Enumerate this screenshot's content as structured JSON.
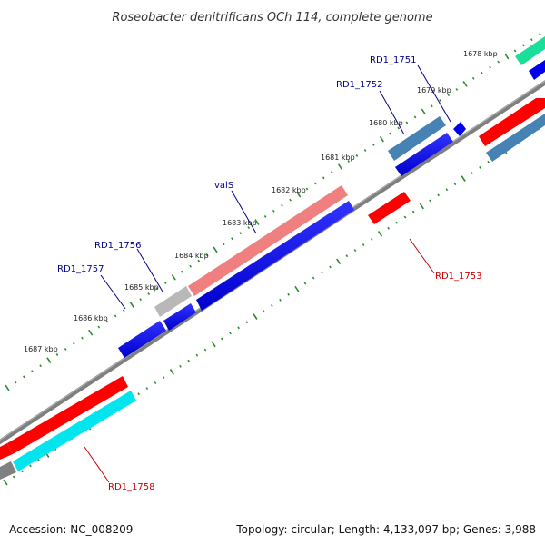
{
  "title": "Roseobacter denitrificans OCh 114, complete genome",
  "footer": {
    "accession": "Accession: NC_008209",
    "summary": "Topology: circular; Length: 4,133,097 bp; Genes: 3,988"
  },
  "colors": {
    "backbone": "#808080",
    "tick": "#2e8b2e",
    "forward_label": "#00008b",
    "reverse_label": "#cc0000"
  },
  "ticks": [
    {
      "label": "1678 kbp",
      "kbp": 1678
    },
    {
      "label": "1679 kbp",
      "kbp": 1679
    },
    {
      "label": "1680 kbp",
      "kbp": 1680
    },
    {
      "label": "1681 kbp",
      "kbp": 1681
    },
    {
      "label": "1682 kbp",
      "kbp": 1682
    },
    {
      "label": "1683 kbp",
      "kbp": 1683
    },
    {
      "label": "1684 kbp",
      "kbp": 1684
    },
    {
      "label": "1685 kbp",
      "kbp": 1685
    },
    {
      "label": "1686 kbp",
      "kbp": 1686
    },
    {
      "label": "1687 kbp",
      "kbp": 1687
    }
  ],
  "gene_labels": [
    {
      "id": "RD1_1751",
      "text": "RD1_1751",
      "strand": "forward"
    },
    {
      "id": "RD1_1752",
      "text": "RD1_1752",
      "strand": "forward"
    },
    {
      "id": "valS",
      "text": "valS",
      "strand": "forward"
    },
    {
      "id": "RD1_1756",
      "text": "RD1_1756",
      "strand": "forward"
    },
    {
      "id": "RD1_1757",
      "text": "RD1_1757",
      "strand": "forward"
    },
    {
      "id": "RD1_1753",
      "text": "RD1_1753",
      "strand": "reverse"
    },
    {
      "id": "RD1_1758",
      "text": "RD1_1758",
      "strand": "reverse"
    }
  ]
}
